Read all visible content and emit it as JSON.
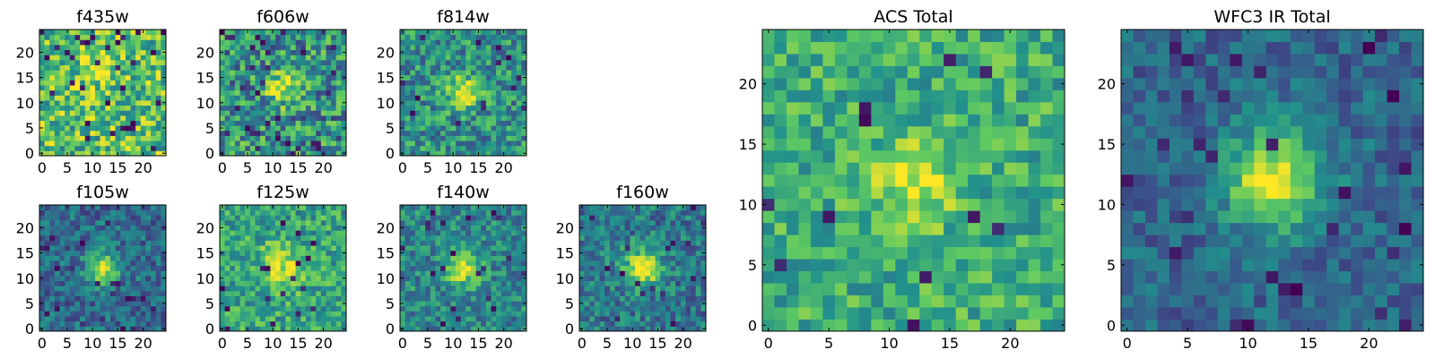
{
  "figure": {
    "colormap": "viridis",
    "colormap_stops": [
      "#440154",
      "#3b528b",
      "#21918c",
      "#5ec962",
      "#fde725"
    ]
  },
  "chart_data": [
    {
      "type": "heatmap",
      "title": "f435w",
      "grid_size": 25,
      "x_ticks": [
        0,
        5,
        10,
        15,
        20
      ],
      "y_ticks": [
        0,
        5,
        10,
        15,
        20
      ],
      "xlim": [
        0,
        24
      ],
      "ylim": [
        0,
        24
      ],
      "source_center": [
        11,
        17
      ],
      "source_peak": 0.25,
      "source_sigma": 2.5,
      "background_level": 0.7,
      "noise": 0.3,
      "min": 0,
      "max": 1,
      "dark_pixel_fraction": 0.05
    },
    {
      "type": "heatmap",
      "title": "f606w",
      "grid_size": 25,
      "x_ticks": [
        0,
        5,
        10,
        15,
        20
      ],
      "y_ticks": [
        0,
        5,
        10,
        15,
        20
      ],
      "xlim": [
        0,
        24
      ],
      "ylim": [
        0,
        24
      ],
      "source_center": [
        12,
        13
      ],
      "source_peak": 0.5,
      "source_sigma": 2.2,
      "background_level": 0.5,
      "noise": 0.32,
      "min": 0,
      "max": 1,
      "dark_pixel_fraction": 0.05
    },
    {
      "type": "heatmap",
      "title": "f814w",
      "grid_size": 25,
      "x_ticks": [
        0,
        5,
        10,
        15,
        20
      ],
      "y_ticks": [
        0,
        5,
        10,
        15,
        20
      ],
      "xlim": [
        0,
        24
      ],
      "ylim": [
        0,
        24
      ],
      "source_center": [
        12,
        12
      ],
      "source_peak": 0.5,
      "source_sigma": 2.2,
      "background_level": 0.5,
      "noise": 0.25,
      "min": 0,
      "max": 1,
      "dark_pixel_fraction": 0.03
    },
    {
      "type": "heatmap",
      "title": "f105w",
      "grid_size": 25,
      "x_ticks": [
        0,
        5,
        10,
        15,
        20
      ],
      "y_ticks": [
        0,
        5,
        10,
        15,
        20
      ],
      "xlim": [
        0,
        24
      ],
      "ylim": [
        0,
        24
      ],
      "source_center": [
        12,
        12
      ],
      "source_peak": 0.6,
      "source_sigma": 2.2,
      "background_level": 0.35,
      "noise": 0.18,
      "min": 0,
      "max": 1,
      "dark_pixel_fraction": 0.03
    },
    {
      "type": "heatmap",
      "title": "f125w",
      "grid_size": 25,
      "x_ticks": [
        0,
        5,
        10,
        15,
        20
      ],
      "y_ticks": [
        0,
        5,
        10,
        15,
        20
      ],
      "xlim": [
        0,
        24
      ],
      "ylim": [
        0,
        24
      ],
      "source_center": [
        12,
        12
      ],
      "source_peak": 0.35,
      "source_sigma": 3.2,
      "background_level": 0.58,
      "noise": 0.22,
      "min": 0,
      "max": 1,
      "dark_pixel_fraction": 0.03
    },
    {
      "type": "heatmap",
      "title": "f140w",
      "grid_size": 25,
      "x_ticks": [
        0,
        5,
        10,
        15,
        20
      ],
      "y_ticks": [
        0,
        5,
        10,
        15,
        20
      ],
      "xlim": [
        0,
        24
      ],
      "ylim": [
        0,
        24
      ],
      "source_center": [
        12,
        12
      ],
      "source_peak": 0.5,
      "source_sigma": 2.4,
      "background_level": 0.45,
      "noise": 0.2,
      "min": 0,
      "max": 1,
      "dark_pixel_fraction": 0.03
    },
    {
      "type": "heatmap",
      "title": "f160w",
      "grid_size": 25,
      "x_ticks": [
        0,
        5,
        10,
        15,
        20
      ],
      "y_ticks": [
        0,
        5,
        10,
        15,
        20
      ],
      "xlim": [
        0,
        24
      ],
      "ylim": [
        0,
        24
      ],
      "source_center": [
        12,
        12
      ],
      "source_peak": 0.6,
      "source_sigma": 2.6,
      "background_level": 0.4,
      "noise": 0.2,
      "min": 0,
      "max": 1,
      "dark_pixel_fraction": 0.03
    },
    {
      "type": "heatmap",
      "title": "ACS Total",
      "grid_size": 25,
      "x_ticks": [
        0,
        5,
        10,
        15,
        20
      ],
      "y_ticks": [
        0,
        5,
        10,
        15,
        20
      ],
      "xlim": [
        0,
        24
      ],
      "ylim": [
        0,
        24
      ],
      "source_center": [
        12,
        12
      ],
      "source_peak": 0.35,
      "source_sigma": 2.4,
      "background_level": 0.62,
      "noise": 0.2,
      "min": 0,
      "max": 1,
      "dark_pixel_fraction": 0.02
    },
    {
      "type": "heatmap",
      "title": "WFC3 IR Total",
      "grid_size": 25,
      "x_ticks": [
        0,
        5,
        10,
        15,
        20
      ],
      "y_ticks": [
        0,
        5,
        10,
        15,
        20
      ],
      "xlim": [
        0,
        24
      ],
      "ylim": [
        0,
        24
      ],
      "source_center": [
        12,
        12
      ],
      "source_peak": 0.65,
      "source_sigma": 2.8,
      "background_level": 0.33,
      "noise": 0.14,
      "min": 0,
      "max": 1,
      "dark_pixel_fraction": 0.04
    }
  ]
}
